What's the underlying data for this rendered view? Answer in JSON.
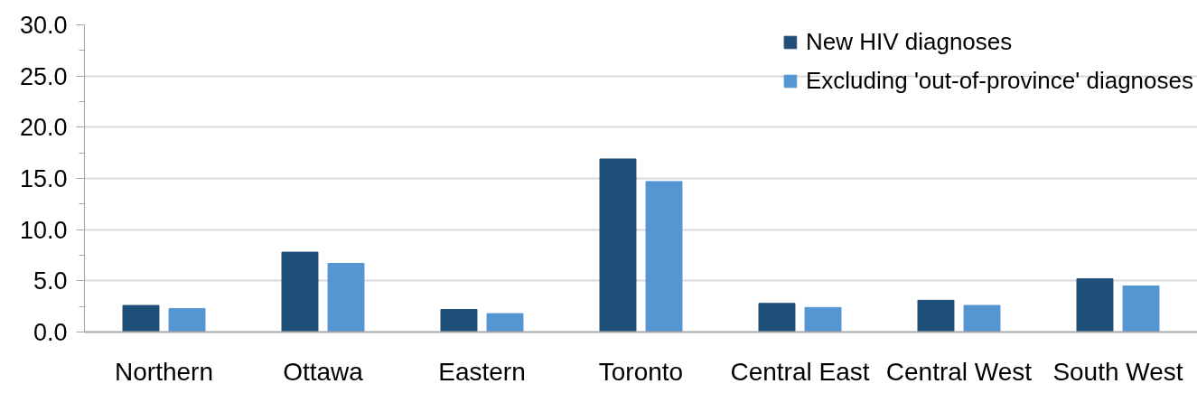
{
  "chart_data": {
    "type": "bar",
    "categories": [
      "Northern",
      "Ottawa",
      "Eastern",
      "Toronto",
      "Central East",
      "Central West",
      "South West"
    ],
    "series": [
      {
        "name": "New HIV diagnoses",
        "color": "#1f4e79",
        "values": [
          2.6,
          7.8,
          2.2,
          16.9,
          2.8,
          3.1,
          5.2
        ]
      },
      {
        "name": "Excluding 'out-of-province' diagnoses",
        "color": "#5496d2",
        "values": [
          2.3,
          6.7,
          1.8,
          14.7,
          2.4,
          2.6,
          4.5
        ]
      }
    ],
    "ylim": [
      0,
      30
    ],
    "yticks": [
      {
        "value": 0,
        "label": "0.0"
      },
      {
        "value": 2.5,
        "label": null
      },
      {
        "value": 5,
        "label": "5.0"
      },
      {
        "value": 7.5,
        "label": null
      },
      {
        "value": 10,
        "label": "10.0"
      },
      {
        "value": 12.5,
        "label": null
      },
      {
        "value": 15,
        "label": "15.0"
      },
      {
        "value": 17.5,
        "label": null
      },
      {
        "value": 20,
        "label": "20.0"
      },
      {
        "value": 22.5,
        "label": null
      },
      {
        "value": 25,
        "label": "25.0"
      },
      {
        "value": 27.5,
        "label": null
      },
      {
        "value": 30,
        "label": "30.0"
      }
    ],
    "grid": "y",
    "legend": "top right"
  }
}
